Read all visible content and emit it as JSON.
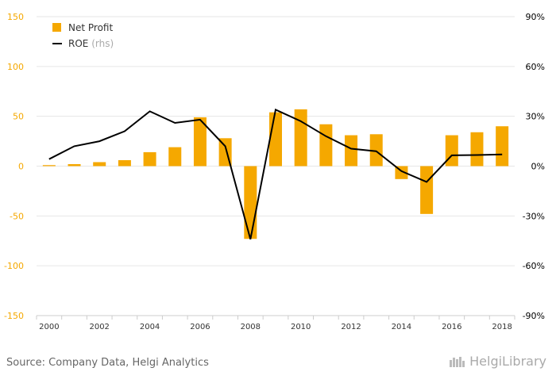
{
  "chart_data": {
    "type": "bar+line",
    "categories": [
      "2000",
      "2001",
      "2002",
      "2003",
      "2004",
      "2005",
      "2006",
      "2007",
      "2008",
      "2009",
      "2010",
      "2011",
      "2012",
      "2013",
      "2014",
      "2015",
      "2016",
      "2017",
      "2018"
    ],
    "x_tick_labels": [
      "2000",
      "2002",
      "2004",
      "2006",
      "2008",
      "2010",
      "2012",
      "2014",
      "2016",
      "2018"
    ],
    "series": [
      {
        "name": "Net Profit",
        "type": "bar",
        "axis": "left",
        "color": "#f5a800",
        "values": [
          1,
          2,
          4,
          6,
          14,
          19,
          49,
          28,
          -73,
          54,
          57,
          42,
          31,
          32,
          -13,
          -48,
          31,
          34,
          40
        ]
      },
      {
        "name": "ROE",
        "suffix": " (rhs)",
        "type": "line",
        "axis": "right",
        "color": "#000000",
        "values": [
          4.2,
          12,
          15,
          21,
          33,
          26,
          28,
          12,
          -44,
          34,
          27,
          18,
          10.5,
          9,
          -3,
          -9.5,
          6.5,
          6.7,
          7
        ]
      }
    ],
    "y_left": {
      "min": -150,
      "max": 150,
      "ticks": [
        "150",
        "100",
        "50",
        "0",
        "-50",
        "-100",
        "-150"
      ]
    },
    "y_right": {
      "min": -90,
      "max": 90,
      "ticks": [
        "90%",
        "60%",
        "30%",
        "0%",
        "-30%",
        "-60%",
        "-90%"
      ]
    },
    "tick_color": "#f5a800",
    "grid": true,
    "legend_position": "top-left"
  },
  "footer": {
    "source": "Source: Company Data, Helgi Analytics"
  },
  "logo": {
    "text": "HelgiLibrary"
  }
}
